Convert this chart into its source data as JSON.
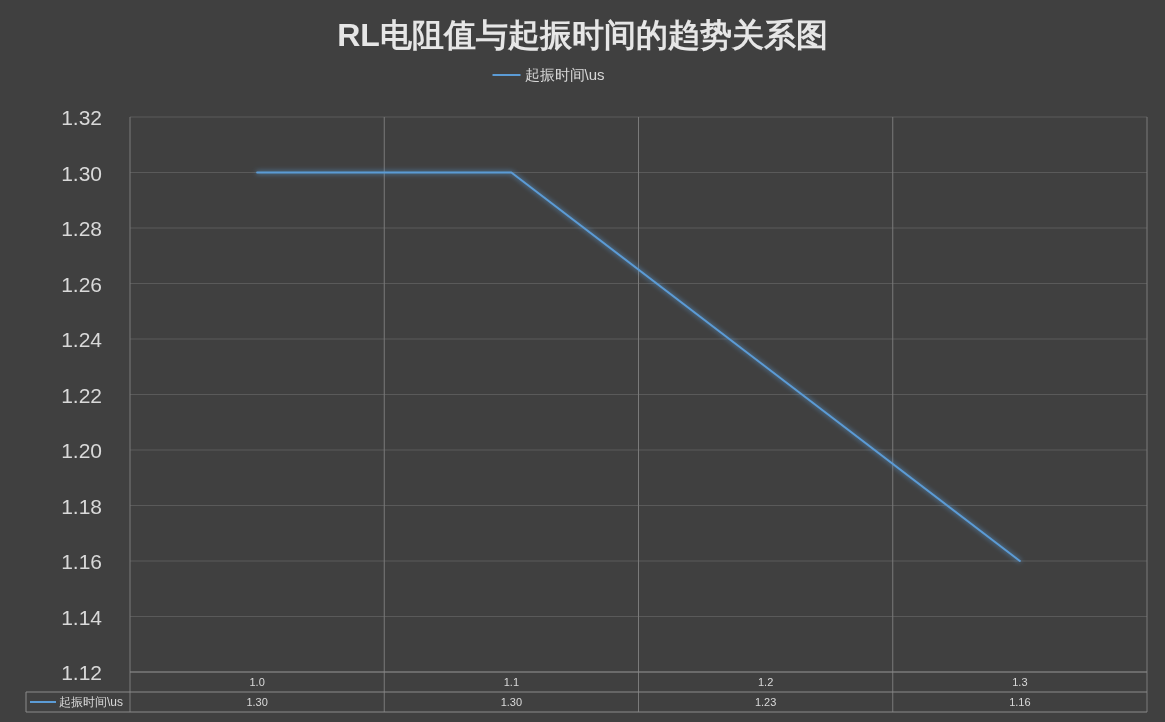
{
  "chart_data": {
    "type": "line",
    "title": "RL电阻值与起振时间的趋势关系图",
    "categories": [
      "1.0",
      "1.1",
      "1.2",
      "1.3"
    ],
    "series": [
      {
        "name": "起振时间\\us",
        "color": "#5b9bd5",
        "values": [
          1.3,
          1.3,
          1.23,
          1.16
        ],
        "value_labels": [
          "1.30",
          "1.30",
          "1.23",
          "1.16"
        ]
      }
    ],
    "ylim": [
      1.12,
      1.32
    ],
    "yticks": [
      1.12,
      1.14,
      1.16,
      1.18,
      {
        "value": 1.2,
        "label": "1.20"
      },
      1.22,
      1.24,
      1.26,
      1.28,
      {
        "value": 1.3,
        "label": "1.30"
      },
      1.32
    ],
    "grid": true,
    "legend": "top",
    "marker": "none",
    "line_style": "solid"
  }
}
